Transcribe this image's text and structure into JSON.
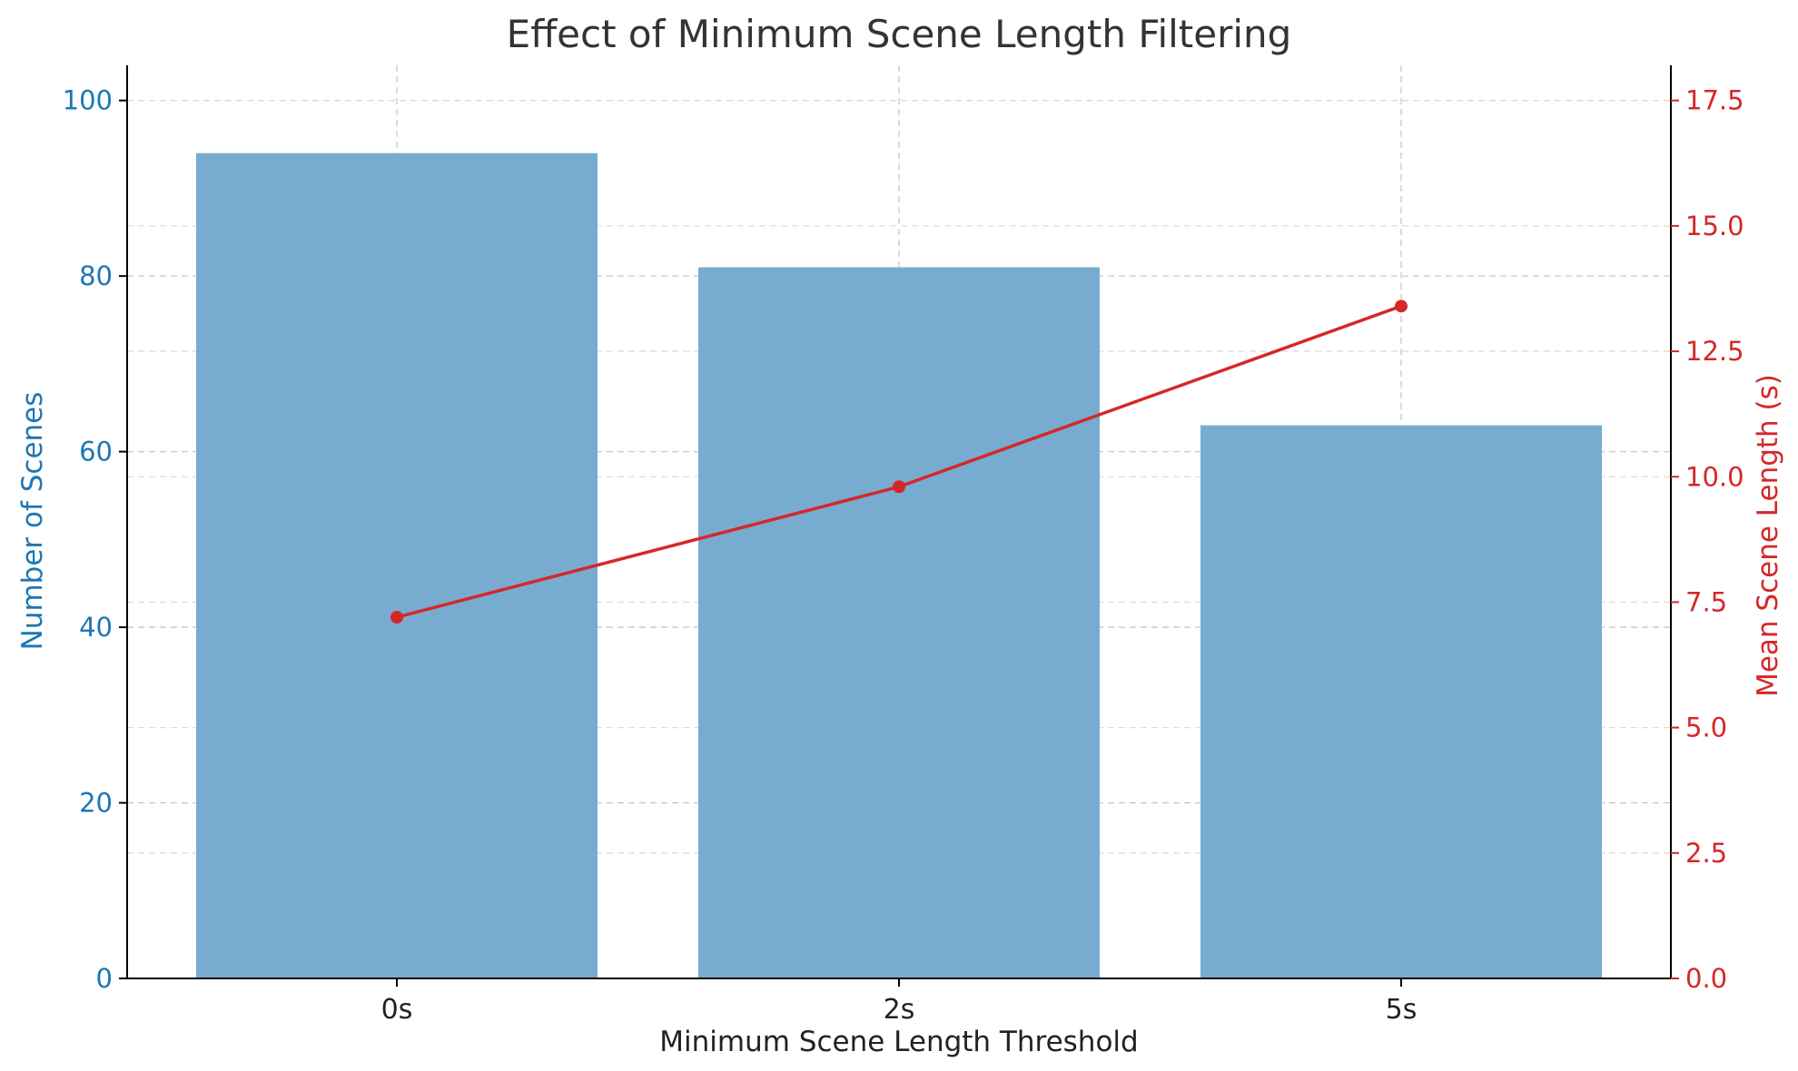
{
  "colors": {
    "bar": "#77acd0",
    "line": "#d62728",
    "left_axis": "#1f77b4",
    "right_axis": "#d62728",
    "title": "#333333",
    "grid": "#c8c8c8",
    "axis": "#000000"
  },
  "chart_data": {
    "type": "bar",
    "title": "Effect of Minimum Scene Length Filtering",
    "xlabel": "Minimum Scene Length Threshold",
    "ylabel": "Number of Scenes",
    "y2label": "Mean Scene Length (s)",
    "categories": [
      "0s",
      "2s",
      "5s"
    ],
    "ylim": [
      0,
      104
    ],
    "y2lim": [
      0,
      18.2
    ],
    "yticks": [
      0,
      20,
      40,
      60,
      80,
      100
    ],
    "y2ticks": [
      "0.0",
      "2.5",
      "5.0",
      "7.5",
      "10.0",
      "12.5",
      "15.0",
      "17.5"
    ],
    "grid": true,
    "series": [
      {
        "type": "bar",
        "axis": "left",
        "values": [
          94,
          81,
          63
        ]
      },
      {
        "type": "line",
        "axis": "right",
        "marker": "circle",
        "values": [
          7.2,
          9.8,
          13.4
        ]
      }
    ]
  }
}
